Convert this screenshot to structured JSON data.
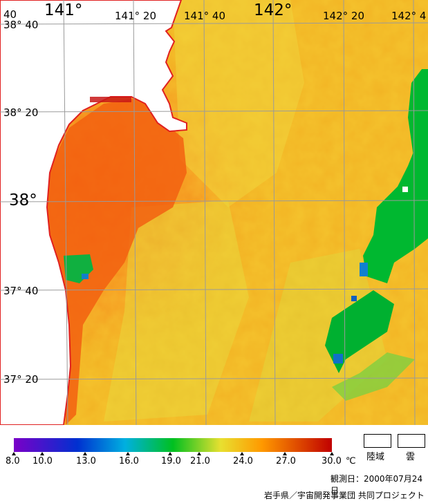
{
  "map": {
    "lon_labels_major": [
      "141°",
      "142°"
    ],
    "lon_labels_minor": [
      "141° 20",
      "141° 40",
      "142° 20",
      "142° 4"
    ],
    "corner_label": "40",
    "lat_labels": [
      "38° 40",
      "38° 20",
      "38°",
      "37° 40",
      "37° 20"
    ]
  },
  "legend": {
    "ticks": [
      "8.0",
      "10.0",
      "13.0",
      "16.0",
      "19.0",
      "21.0",
      "24.0",
      "27.0",
      "30.0"
    ],
    "unit": "℃",
    "land_label": "陸域",
    "cloud_label": "雲",
    "colors": {
      "violet": "#7a00c8",
      "blue": "#0030d0",
      "cyan": "#00b0e0",
      "green": "#00c020",
      "yellow": "#e8e030",
      "orange": "#ff9900",
      "red": "#c00000"
    }
  },
  "caption": {
    "observation_date": "観測日：2000年07月24日",
    "credit": "岩手県／宇宙開発事業団 共同プロジェクト"
  }
}
